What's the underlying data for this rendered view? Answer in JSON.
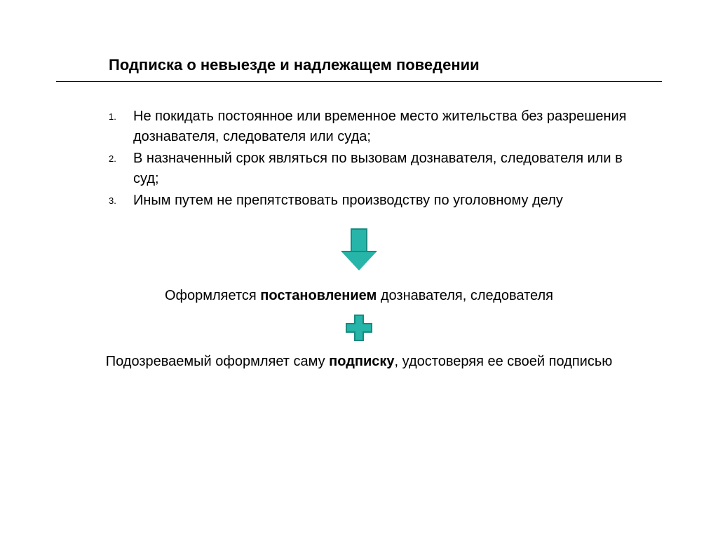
{
  "title": "Подписка о невыезде и надлежащем поведении",
  "list": {
    "items": [
      "Не покидать постоянное или временное место жительства без разрешения дознавателя, следователя или суда;",
      "В назначенный срок являться по вызовам дознавателя, следователя или в суд;",
      "Иным путем не препятствовать производству по уголовному делу"
    ]
  },
  "middle": {
    "prefix": "Оформляется ",
    "bold": "постановлением",
    "suffix": " дознавателя, следователя"
  },
  "bottom": {
    "prefix": "Подозреваемый оформляет саму ",
    "bold": "подписку",
    "suffix": ", удостоверяя ее своей подписью"
  },
  "styling": {
    "accent_color": "#26b5a8",
    "accent_border": "#1a8a80",
    "background_color": "#ffffff",
    "text_color": "#000000",
    "title_fontsize": 22,
    "body_fontsize": 20,
    "list_number_fontsize": 13,
    "font_family": "Verdana"
  }
}
